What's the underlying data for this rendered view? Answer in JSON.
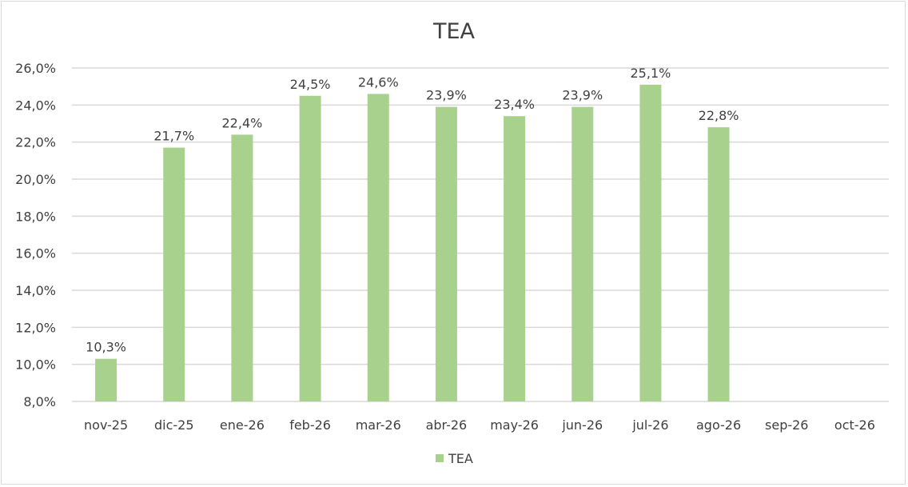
{
  "chart_data": {
    "type": "bar",
    "title": "TEA",
    "xlabel": "",
    "ylabel": "",
    "categories": [
      "nov-25",
      "dic-25",
      "ene-26",
      "feb-26",
      "mar-26",
      "abr-26",
      "may-26",
      "jun-26",
      "jul-26",
      "ago-26",
      "sep-26",
      "oct-26"
    ],
    "series": [
      {
        "name": "TEA",
        "values": [
          10.3,
          21.7,
          22.4,
          24.5,
          24.6,
          23.9,
          23.4,
          23.9,
          25.1,
          22.8,
          null,
          null
        ],
        "labels": [
          "10,3%",
          "21,7%",
          "22,4%",
          "24,5%",
          "24,6%",
          "23,9%",
          "23,4%",
          "23,9%",
          "25,1%",
          "22,8%",
          "",
          ""
        ]
      }
    ],
    "ylim": [
      8,
      26
    ],
    "yticks": [
      8,
      10,
      12,
      14,
      16,
      18,
      20,
      22,
      24,
      26
    ],
    "ytick_labels": [
      "8,0%",
      "10,0%",
      "12,0%",
      "14,0%",
      "16,0%",
      "18,0%",
      "20,0%",
      "22,0%",
      "24,0%",
      "26,0%"
    ],
    "grid": true,
    "legend": "bottom-center",
    "colors": {
      "bar": "#a9d18e",
      "grid": "#d9d9d9",
      "axis": "#d9d9d9",
      "text": "#404040"
    }
  }
}
